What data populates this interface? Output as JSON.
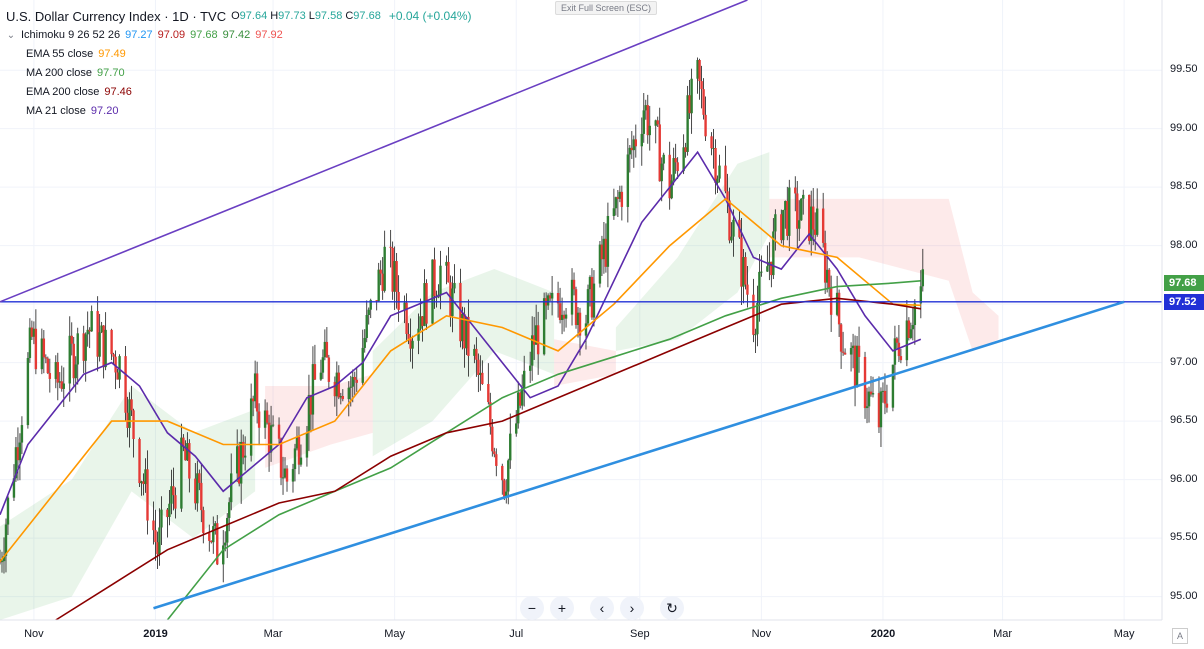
{
  "exit_label": "Exit Full Screen (ESC)",
  "legend": {
    "symbol": "U.S. Dollar Currency Index · 1D · TVC",
    "ohlc": [
      {
        "k": "O",
        "v": "97.64"
      },
      {
        "k": "H",
        "v": "97.73"
      },
      {
        "k": "L",
        "v": "97.58"
      },
      {
        "k": "C",
        "v": "97.68"
      }
    ],
    "change": "+0.04 (+0.04%)",
    "ichimoku": {
      "label": "Ichimoku 9 26 52 26",
      "values": [
        {
          "v": "97.27",
          "color": "#2196f3"
        },
        {
          "v": "97.09",
          "color": "#b71c1c"
        },
        {
          "v": "97.68",
          "color": "#43a047"
        },
        {
          "v": "97.42",
          "color": "#388e3c"
        },
        {
          "v": "97.92",
          "color": "#ef5350"
        }
      ]
    },
    "indicators": [
      {
        "label": "EMA 55 close",
        "value": "97.49",
        "color": "#ff9800"
      },
      {
        "label": "MA 200 close",
        "value": "97.70",
        "color": "#43a047"
      },
      {
        "label": "EMA 200 close",
        "value": "97.46",
        "color": "#8b0000"
      },
      {
        "label": "MA 21 close",
        "value": "97.20",
        "color": "#5b2bab"
      }
    ]
  },
  "toolbar": {
    "zoom_out": "−",
    "zoom_in": "+",
    "back": "‹",
    "forward": "›",
    "reset": "↻"
  },
  "chart_data": {
    "type": "candlestick",
    "y_axis": {
      "ticks": [
        99.5,
        99.0,
        98.5,
        98.0,
        97.5,
        97.0,
        96.5,
        96.0,
        95.5,
        95.0
      ],
      "tick_labels": [
        "99.50",
        "99.00",
        "98.50",
        "98.00",
        "97.50",
        "97.00",
        "96.50",
        "96.00",
        "95.50",
        "95.00"
      ],
      "range": [
        94.8,
        100.1
      ]
    },
    "x_axis": {
      "ticks": [
        {
          "label": "Nov",
          "date": "2018-11",
          "bold": false
        },
        {
          "label": "2019",
          "date": "2019-01",
          "bold": true
        },
        {
          "label": "Mar",
          "date": "2019-03",
          "bold": false
        },
        {
          "label": "May",
          "date": "2019-05",
          "bold": false
        },
        {
          "label": "Jul",
          "date": "2019-07",
          "bold": false
        },
        {
          "label": "Sep",
          "date": "2019-09",
          "bold": false
        },
        {
          "label": "Nov",
          "date": "2019-11",
          "bold": false
        },
        {
          "label": "2020",
          "date": "2020-01",
          "bold": true
        },
        {
          "label": "Mar",
          "date": "2020-03",
          "bold": false
        },
        {
          "label": "May",
          "date": "2020-05",
          "bold": false
        }
      ]
    },
    "price_labels": [
      {
        "value": "97.68",
        "color": "#43a047"
      },
      {
        "value": "97.52",
        "color": "#2130d6"
      }
    ],
    "horizontal_line": {
      "value": 97.52,
      "color": "#2130d6"
    },
    "trendlines": [
      {
        "name": "resistance",
        "from": [
          "2018-10-15",
          97.52
        ],
        "to": [
          "2019-10-25",
          100.1
        ],
        "color": "#6a3fc2"
      },
      {
        "name": "support",
        "from": [
          "2018-12-31",
          94.9
        ],
        "to": [
          "2020-05-01",
          97.52
        ],
        "color": "#2f8fe0"
      }
    ],
    "series": [
      {
        "name": "MA 21 close",
        "color": "#5b2bab",
        "points": [
          [
            "2018-10-15",
            95.7
          ],
          [
            "2018-10-29",
            96.3
          ],
          [
            "2018-11-12",
            96.6
          ],
          [
            "2018-11-26",
            96.9
          ],
          [
            "2018-12-10",
            97.0
          ],
          [
            "2018-12-24",
            96.8
          ],
          [
            "2019-01-07",
            96.4
          ],
          [
            "2019-01-21",
            96.2
          ],
          [
            "2019-02-04",
            95.9
          ],
          [
            "2019-02-18",
            96.1
          ],
          [
            "2019-03-04",
            96.3
          ],
          [
            "2019-03-18",
            96.7
          ],
          [
            "2019-04-01",
            96.8
          ],
          [
            "2019-04-15",
            97.0
          ],
          [
            "2019-04-29",
            97.4
          ],
          [
            "2019-05-13",
            97.5
          ],
          [
            "2019-05-27",
            97.6
          ],
          [
            "2019-06-10",
            97.3
          ],
          [
            "2019-06-24",
            97.0
          ],
          [
            "2019-07-08",
            96.7
          ],
          [
            "2019-07-22",
            96.8
          ],
          [
            "2019-08-05",
            97.2
          ],
          [
            "2019-08-19",
            97.7
          ],
          [
            "2019-09-02",
            98.2
          ],
          [
            "2019-09-16",
            98.5
          ],
          [
            "2019-09-30",
            98.8
          ],
          [
            "2019-10-14",
            98.4
          ],
          [
            "2019-10-28",
            97.9
          ],
          [
            "2019-11-11",
            97.8
          ],
          [
            "2019-11-25",
            98.1
          ],
          [
            "2019-12-09",
            97.8
          ],
          [
            "2019-12-23",
            97.4
          ],
          [
            "2020-01-06",
            97.1
          ],
          [
            "2020-01-20",
            97.2
          ]
        ]
      },
      {
        "name": "EMA 55 close",
        "color": "#ff9800",
        "points": [
          [
            "2018-10-15",
            95.3
          ],
          [
            "2018-11-12",
            95.9
          ],
          [
            "2018-12-10",
            96.5
          ],
          [
            "2019-01-07",
            96.5
          ],
          [
            "2019-02-04",
            96.3
          ],
          [
            "2019-03-04",
            96.3
          ],
          [
            "2019-04-01",
            96.5
          ],
          [
            "2019-04-29",
            97.1
          ],
          [
            "2019-05-27",
            97.4
          ],
          [
            "2019-06-24",
            97.3
          ],
          [
            "2019-07-22",
            97.1
          ],
          [
            "2019-08-19",
            97.5
          ],
          [
            "2019-09-16",
            98.0
          ],
          [
            "2019-10-14",
            98.4
          ],
          [
            "2019-11-11",
            98.0
          ],
          [
            "2019-12-09",
            97.9
          ],
          [
            "2020-01-06",
            97.5
          ],
          [
            "2020-01-20",
            97.49
          ]
        ]
      },
      {
        "name": "MA 200 close",
        "color": "#43a047",
        "points": [
          [
            "2019-01-07",
            94.8
          ],
          [
            "2019-02-04",
            95.4
          ],
          [
            "2019-03-04",
            95.7
          ],
          [
            "2019-04-01",
            95.9
          ],
          [
            "2019-04-29",
            96.1
          ],
          [
            "2019-05-27",
            96.4
          ],
          [
            "2019-06-24",
            96.7
          ],
          [
            "2019-07-22",
            96.9
          ],
          [
            "2019-08-19",
            97.05
          ],
          [
            "2019-09-16",
            97.2
          ],
          [
            "2019-10-14",
            97.4
          ],
          [
            "2019-11-11",
            97.55
          ],
          [
            "2019-12-09",
            97.65
          ],
          [
            "2020-01-06",
            97.68
          ],
          [
            "2020-01-20",
            97.7
          ]
        ]
      },
      {
        "name": "EMA 200 close",
        "color": "#8b0000",
        "points": [
          [
            "2018-11-12",
            94.8
          ],
          [
            "2018-12-10",
            95.1
          ],
          [
            "2019-01-07",
            95.4
          ],
          [
            "2019-02-04",
            95.6
          ],
          [
            "2019-03-04",
            95.8
          ],
          [
            "2019-04-01",
            95.9
          ],
          [
            "2019-04-29",
            96.2
          ],
          [
            "2019-05-27",
            96.4
          ],
          [
            "2019-06-24",
            96.5
          ],
          [
            "2019-07-22",
            96.7
          ],
          [
            "2019-08-19",
            96.9
          ],
          [
            "2019-09-16",
            97.1
          ],
          [
            "2019-10-14",
            97.3
          ],
          [
            "2019-11-11",
            97.5
          ],
          [
            "2019-12-09",
            97.55
          ],
          [
            "2020-01-06",
            97.5
          ],
          [
            "2020-01-20",
            97.46
          ]
        ]
      }
    ],
    "candles_summary": {
      "approx_range": [
        95.0,
        99.7
      ],
      "last_close": 97.68,
      "last_date": "2020-01-21"
    },
    "legend_placement": "top-left",
    "grid": true
  }
}
